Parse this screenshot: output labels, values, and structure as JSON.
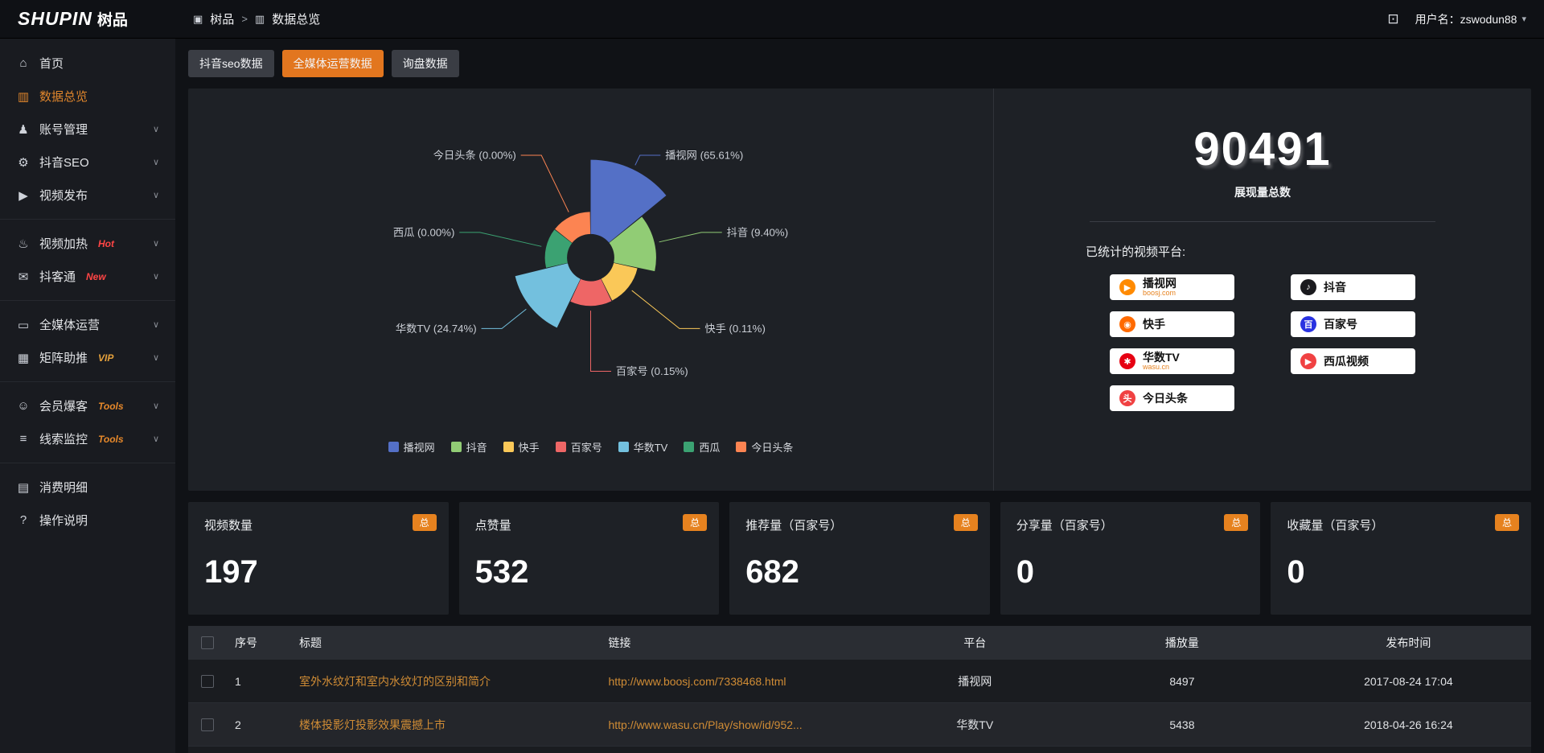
{
  "topbar": {
    "logo_en": "SHUPIN",
    "logo_cn": "树品",
    "crumb_root_icon": "▣",
    "breadcrumb_root": "树品",
    "breadcrumb_sep": ">",
    "crumb_page_icon": "▥",
    "breadcrumb_current": "数据总览",
    "fullscreen_icon": "⊡",
    "username": "用户名：zswodun88",
    "caret_icon": "▾"
  },
  "sidebar": {
    "items": [
      {
        "label": "首页",
        "icon": "⌂"
      },
      {
        "label": "数据总览",
        "icon": "▥"
      },
      {
        "label": "账号管理",
        "icon": "♟",
        "chevron": "∨"
      },
      {
        "label": "抖音SEO",
        "icon": "⚙",
        "chevron": "∨"
      },
      {
        "label": "视频发布",
        "icon": "▶",
        "chevron": "∨"
      },
      {
        "label": "视频加热",
        "icon": "♨",
        "badge": "Hot",
        "badge_color": "#ff4545",
        "chevron": "∨"
      },
      {
        "label": "抖客通",
        "icon": "✉",
        "badge": "New",
        "badge_color": "#ff4545",
        "chevron": "∨"
      },
      {
        "label": "全媒体运营",
        "icon": "▭",
        "chevron": "∨"
      },
      {
        "label": "矩阵助推",
        "icon": "▦",
        "badge": "VIP",
        "badge_color": "#e6a23c",
        "chevron": "∨"
      },
      {
        "label": "会员爆客",
        "icon": "☺",
        "badge": "Tools",
        "badge_color": "#e6882a",
        "chevron": "∨"
      },
      {
        "label": "线索监控",
        "icon": "≡",
        "badge": "Tools",
        "badge_color": "#e6882a",
        "chevron": "∨"
      },
      {
        "label": "消费明细",
        "icon": "▤"
      },
      {
        "label": "操作说明",
        "icon": "?"
      }
    ]
  },
  "tabs": {
    "items": [
      {
        "label": "抖音seo数据"
      },
      {
        "label": "全媒体运营数据",
        "active": true
      },
      {
        "label": "询盘数据"
      }
    ]
  },
  "chart_data": {
    "type": "pie",
    "style": "rose",
    "items": [
      {
        "name": "播视网",
        "value": 65.61,
        "pct": "65.61%",
        "color": "#5470c6"
      },
      {
        "name": "抖音",
        "value": 9.4,
        "pct": "9.40%",
        "color": "#91cc75"
      },
      {
        "name": "快手",
        "value": 0.11,
        "pct": "0.11%",
        "color": "#fac858"
      },
      {
        "name": "百家号",
        "value": 0.15,
        "pct": "0.15%",
        "color": "#ee6666"
      },
      {
        "name": "华数TV",
        "value": 24.74,
        "pct": "24.74%",
        "color": "#73c0de"
      },
      {
        "name": "西瓜",
        "value": 0.0,
        "pct": "0.00%",
        "color": "#3ba272"
      },
      {
        "name": "今日头条",
        "value": 0.0,
        "pct": "0.00%",
        "color": "#fc8452"
      }
    ],
    "legend_position": "bottom"
  },
  "summary": {
    "total": "90491",
    "total_label": "展现量总数",
    "platforms_title": "已统计的视频平台:",
    "platforms": [
      {
        "name": "播视网",
        "sub": "boosj.com",
        "glyph": "▶",
        "color": "#ff8a00"
      },
      {
        "name": "抖音",
        "glyph": "♪",
        "color": "#1a1a1e"
      },
      {
        "name": "快手",
        "glyph": "◉",
        "color": "#ff6a00"
      },
      {
        "name": "百家号",
        "glyph": "百",
        "color": "#2932e1"
      },
      {
        "name": "华数TV",
        "sub": "wasu.cn",
        "glyph": "✱",
        "color": "#e60012"
      },
      {
        "name": "西瓜视频",
        "glyph": "▶",
        "color": "#f04142"
      },
      {
        "name": "今日头条",
        "glyph": "头",
        "color": "#f04142"
      }
    ]
  },
  "stat_cards": [
    {
      "label": "视频数量",
      "value": "197",
      "badge": "总"
    },
    {
      "label": "点赞量",
      "value": "532",
      "badge": "总"
    },
    {
      "label": "推荐量（百家号）",
      "value": "682",
      "badge": "总"
    },
    {
      "label": "分享量（百家号）",
      "value": "0",
      "badge": "总"
    },
    {
      "label": "收藏量（百家号）",
      "value": "0",
      "badge": "总"
    }
  ],
  "table": {
    "headers": {
      "index": "序号",
      "title": "标题",
      "link": "链接",
      "platform": "平台",
      "plays": "播放量",
      "time": "发布时间"
    },
    "rows": [
      {
        "index": "1",
        "title": "室外水纹灯和室内水纹灯的区别和简介",
        "link": "http://www.boosj.com/7338468.html",
        "platform": "播视网",
        "plays": "8497",
        "time": "2017-08-24 17:04"
      },
      {
        "index": "2",
        "title": "楼体投影灯投影效果震撼上市",
        "link": "http://www.wasu.cn/Play/show/id/952...",
        "platform": "华数TV",
        "plays": "5438",
        "time": "2018-04-26 16:24"
      },
      {
        "index": "",
        "title": "",
        "link": "",
        "platform": "",
        "plays": "",
        "time": ""
      }
    ]
  }
}
